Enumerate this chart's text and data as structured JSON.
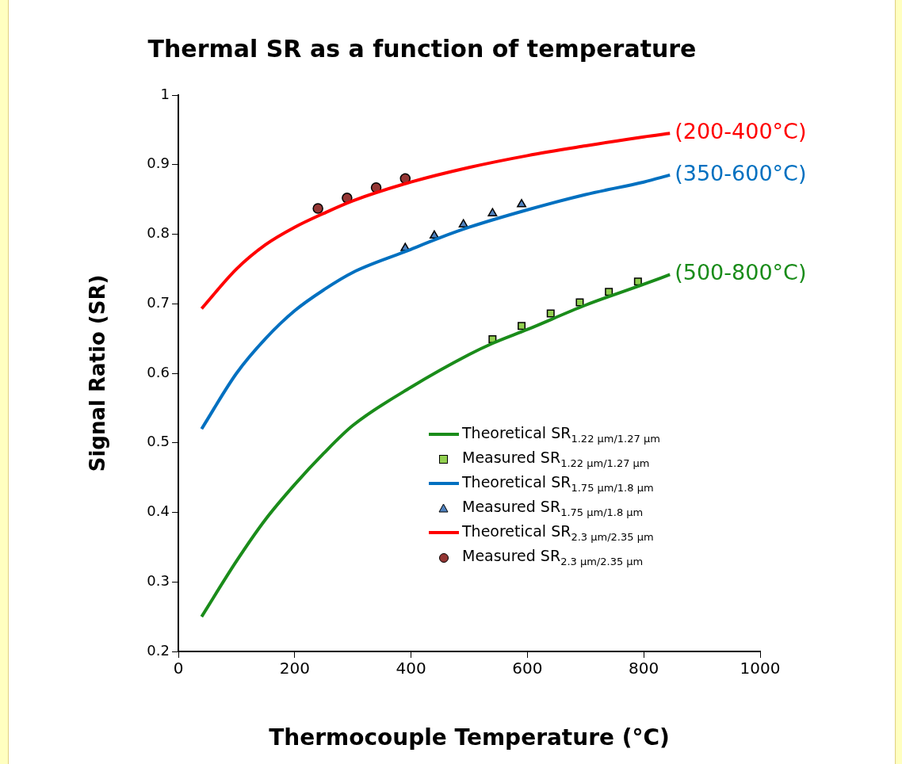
{
  "chart_data": {
    "type": "line",
    "title": "Thermal SR as a function of temperature",
    "xlabel": "Thermocouple Temperature (°C)",
    "ylabel": "Signal Ratio (SR)",
    "xlim": [
      0,
      1000
    ],
    "xticks": [
      0,
      200,
      400,
      600,
      800,
      1000
    ],
    "ylim": [
      0.2,
      1
    ],
    "yticks": [
      0.2,
      0.3,
      0.4,
      0.5,
      0.6,
      0.7,
      0.8,
      0.9,
      1
    ],
    "grid": false,
    "legend": "bottom right",
    "series": [
      {
        "name": "Theoretical SR$_{1.22 μm/1.27 μm}$",
        "marker": "none",
        "color": "#1a8c1a",
        "x": [
          40,
          100,
          150,
          200,
          250,
          300,
          400,
          500,
          540,
          600,
          700,
          800,
          845
        ],
        "values": [
          0.25,
          0.33,
          0.39,
          0.44,
          0.485,
          0.525,
          0.58,
          0.627,
          0.643,
          0.663,
          0.698,
          0.728,
          0.742
        ]
      },
      {
        "name": "Measured SR$_{1.22 μm/1.27 μm}$",
        "type": "scatter",
        "marker": "square",
        "color": "#92d050",
        "x": [
          540,
          590,
          640,
          690,
          740,
          790
        ],
        "values": [
          0.649,
          0.668,
          0.686,
          0.702,
          0.717,
          0.732
        ]
      },
      {
        "name": "Theoretical SR$_{1.75 μm/1.8 μm}$",
        "marker": "none",
        "color": "#0070c0",
        "x": [
          40,
          100,
          150,
          200,
          250,
          300,
          390,
          450,
          500,
          600,
          700,
          800,
          845
        ],
        "values": [
          0.52,
          0.6,
          0.65,
          0.69,
          0.72,
          0.745,
          0.775,
          0.795,
          0.81,
          0.835,
          0.857,
          0.875,
          0.885
        ]
      },
      {
        "name": "Measured SR$_{1.75 μm/1.8 μm}$",
        "type": "scatter",
        "marker": "triangle",
        "color": "#4f81bd",
        "x": [
          390,
          440,
          490,
          540,
          590
        ],
        "values": [
          0.78,
          0.798,
          0.814,
          0.83,
          0.843
        ]
      },
      {
        "name": "Theoretical SR$_{2.3 μm/2.35 μm}$",
        "marker": "none",
        "color": "#ff0000",
        "x": [
          40,
          100,
          150,
          200,
          250,
          300,
          400,
          500,
          600,
          700,
          800,
          845
        ],
        "values": [
          0.693,
          0.75,
          0.785,
          0.81,
          0.83,
          0.848,
          0.875,
          0.896,
          0.913,
          0.927,
          0.94,
          0.945
        ]
      },
      {
        "name": "Measured SR$_{2.3 μm/2.35 μm}$",
        "type": "scatter",
        "marker": "circle",
        "color": "#943634",
        "x": [
          240,
          290,
          340,
          390
        ],
        "values": [
          0.837,
          0.852,
          0.867,
          0.88
        ]
      }
    ],
    "annotations": [
      "(200-400°C)",
      "(350-600°C)",
      "(500-800°C)"
    ]
  }
}
